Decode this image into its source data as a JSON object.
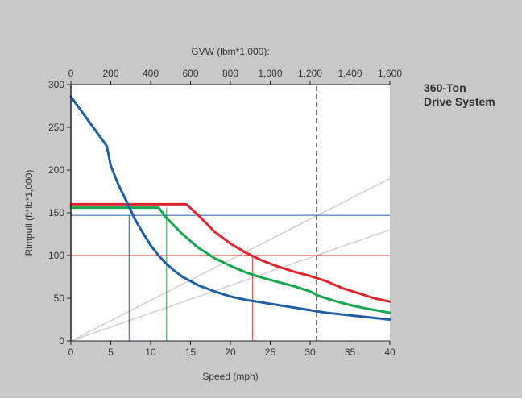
{
  "chart_data": {
    "type": "line",
    "title_lines": [
      "360-Ton",
      "Drive System"
    ],
    "xlabel": "Speed (mph)",
    "ylabel": "Rimpull (ft*lb*1,000)",
    "x2label": "GVW (lbm*1,000):",
    "xlim": [
      0,
      40
    ],
    "ylim": [
      0,
      300
    ],
    "x2lim": [
      0,
      1600
    ],
    "xticks": [
      0,
      5,
      10,
      15,
      20,
      25,
      30,
      35,
      40
    ],
    "yticks": [
      0,
      50,
      100,
      150,
      200,
      250,
      300
    ],
    "x2ticks": [
      0,
      200,
      400,
      600,
      800,
      1000,
      1200,
      1400,
      1600
    ],
    "x2tick_labels": [
      "0",
      "200",
      "400",
      "600",
      "800",
      "1,000",
      "1,200",
      "1,400",
      "1,600"
    ],
    "grid": false,
    "colors": {
      "blue": "#1f5fa8",
      "green": "#13a84b",
      "red": "#e0242c",
      "gray": "#d0d0d0"
    },
    "series": [
      {
        "color": "#e0242c",
        "points": [
          [
            0,
            160
          ],
          [
            14.5,
            160
          ],
          [
            16,
            147
          ],
          [
            18,
            128
          ],
          [
            20,
            114
          ],
          [
            22,
            103
          ],
          [
            24,
            94
          ],
          [
            26,
            87
          ],
          [
            28,
            81
          ],
          [
            30,
            76
          ],
          [
            32,
            70
          ],
          [
            34,
            62
          ],
          [
            36,
            56
          ],
          [
            38,
            50
          ],
          [
            40,
            46
          ]
        ]
      },
      {
        "color": "#13a84b",
        "points": [
          [
            0,
            156
          ],
          [
            11,
            156
          ],
          [
            12,
            144
          ],
          [
            14,
            125
          ],
          [
            16,
            109
          ],
          [
            18,
            97
          ],
          [
            20,
            88
          ],
          [
            22,
            80
          ],
          [
            24,
            74
          ],
          [
            26,
            69
          ],
          [
            28,
            64
          ],
          [
            30,
            58
          ],
          [
            31,
            53
          ],
          [
            33,
            47
          ],
          [
            35,
            42
          ],
          [
            37,
            38
          ],
          [
            40,
            33
          ]
        ]
      },
      {
        "color": "#1f5fa8",
        "points": [
          [
            0,
            286
          ],
          [
            4.5,
            228
          ],
          [
            5,
            205
          ],
          [
            6,
            182
          ],
          [
            7,
            163
          ],
          [
            8,
            143
          ],
          [
            9,
            127
          ],
          [
            10,
            112
          ],
          [
            11,
            100
          ],
          [
            12,
            90
          ],
          [
            13,
            82
          ],
          [
            14,
            75
          ],
          [
            15,
            70
          ],
          [
            16,
            65
          ],
          [
            18,
            58
          ],
          [
            20,
            52
          ],
          [
            22,
            48
          ],
          [
            24,
            45
          ],
          [
            26,
            42
          ],
          [
            28,
            39
          ],
          [
            30,
            36
          ],
          [
            32,
            33
          ],
          [
            34,
            31
          ],
          [
            36,
            29
          ],
          [
            38,
            27
          ],
          [
            40,
            25
          ]
        ]
      }
    ],
    "grade_lines": [
      {
        "color": "#d0d0d0",
        "points": [
          [
            0,
            0
          ],
          [
            40,
            190
          ]
        ]
      },
      {
        "color": "#d0d0d0",
        "points": [
          [
            0,
            0
          ],
          [
            40,
            130
          ]
        ]
      }
    ],
    "reference_lines": [
      {
        "orientation": "horizontal",
        "y": 147,
        "color": "#1f5fa8"
      },
      {
        "orientation": "horizontal",
        "y": 100,
        "color": "#e0242c"
      },
      {
        "orientation": "vertical",
        "x": 7.3,
        "to_y": 147,
        "color": "#1f5fa8"
      },
      {
        "orientation": "vertical",
        "x": 12,
        "to_y": 156,
        "color": "#13a84b"
      },
      {
        "orientation": "vertical",
        "x": 22.8,
        "to_y": 100,
        "color": "#e0242c"
      },
      {
        "orientation": "vertical",
        "x": 30.8,
        "to_y": 300,
        "dashed": true,
        "color": "#444444"
      }
    ]
  }
}
